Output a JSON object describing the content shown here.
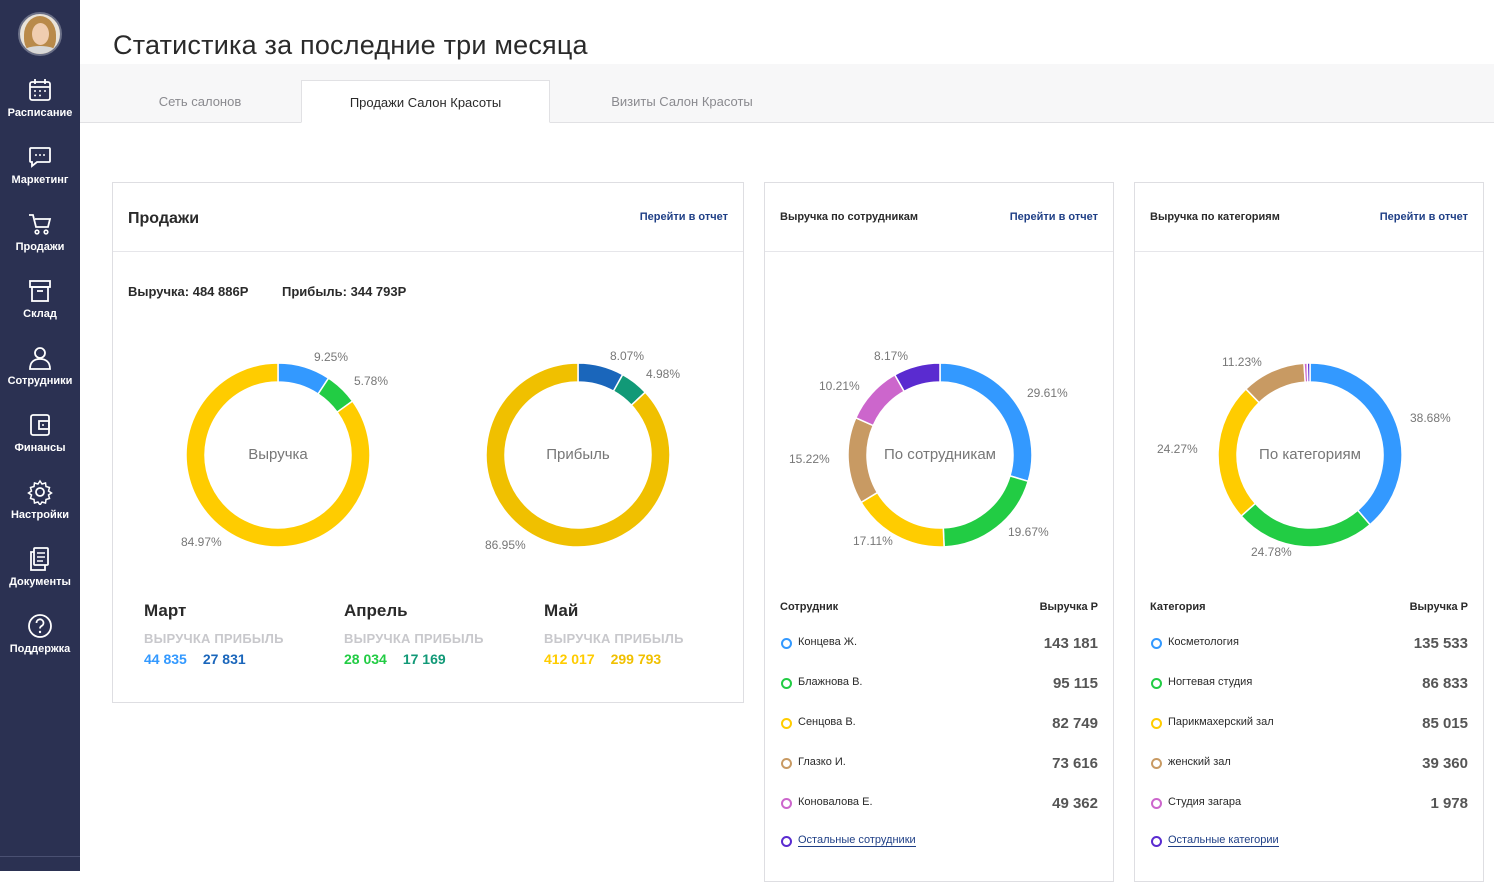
{
  "page": {
    "title": "Статистика за последние три месяца"
  },
  "sidebar": {
    "items": [
      {
        "label": "Расписание",
        "icon": "calendar-icon"
      },
      {
        "label": "Маркетинг",
        "icon": "chat-icon"
      },
      {
        "label": "Продажи",
        "icon": "cart-icon"
      },
      {
        "label": "Склад",
        "icon": "box-icon"
      },
      {
        "label": "Сотрудники",
        "icon": "user-icon"
      },
      {
        "label": "Финансы",
        "icon": "wallet-icon"
      },
      {
        "label": "Настройки",
        "icon": "gear-icon"
      },
      {
        "label": "Документы",
        "icon": "documents-icon"
      },
      {
        "label": "Поддержка",
        "icon": "help-icon"
      }
    ]
  },
  "tabs": [
    {
      "label": "Сеть салонов",
      "active": false
    },
    {
      "label": "Продажи Салон Красоты",
      "active": true
    },
    {
      "label": "Визиты Салон Красоты",
      "active": false
    }
  ],
  "sales": {
    "title": "Продажи",
    "link": "Перейти в отчет",
    "revenue_total": "Выручка: 484 886Р",
    "profit_total": "Прибыль: 344 793Р",
    "donut_revenue": {
      "center": "Выручка",
      "labels": [
        "9.25%",
        "5.78%",
        "84.97%"
      ]
    },
    "donut_profit": {
      "center": "Прибыль",
      "labels": [
        "8.07%",
        "4.98%",
        "86.95%"
      ]
    },
    "header_revenue": "ВЫРУЧКА",
    "header_profit": "ПРИБЫЛЬ",
    "months": [
      {
        "name": "Март",
        "revenue": "44 835",
        "profit": "27 831"
      },
      {
        "name": "Апрель",
        "revenue": "28 034",
        "profit": "17 169"
      },
      {
        "name": "Май",
        "revenue": "412 017",
        "profit": "299 793"
      }
    ]
  },
  "employees": {
    "title": "Выручка по сотрудникам",
    "link": "Перейти в отчет",
    "center": "По сотрудникам",
    "col_name": "Сотрудник",
    "col_value": "Выручка Р",
    "rows": [
      {
        "name": "Концева Ж.",
        "value": "143 181",
        "color": "#3399ff"
      },
      {
        "name": "Блажнова В.",
        "value": "95 115",
        "color": "#22cc44"
      },
      {
        "name": "Сенцова В.",
        "value": "82 749",
        "color": "#ffcc00"
      },
      {
        "name": "Глазко И.",
        "value": "73 616",
        "color": "#c89a63"
      },
      {
        "name": "Коновалова Е.",
        "value": "49 362",
        "color": "#cc66cc"
      }
    ],
    "others": "Остальные сотрудники",
    "others_color": "#5a2bd0"
  },
  "categories": {
    "title": "Выручка по категориям",
    "link": "Перейти в отчет",
    "center": "По категориям",
    "col_name": "Категория",
    "col_value": "Выручка Р",
    "rows": [
      {
        "name": "Косметология",
        "value": "135 533",
        "color": "#3399ff"
      },
      {
        "name": "Ногтевая студия",
        "value": "86 833",
        "color": "#22cc44"
      },
      {
        "name": "Парикмахерский зал",
        "value": "85 015",
        "color": "#ffcc00"
      },
      {
        "name": "женский зал",
        "value": "39 360",
        "color": "#c89a63"
      },
      {
        "name": "Студия загара",
        "value": "1 978",
        "color": "#cc66cc"
      }
    ],
    "others": "Остальные категории",
    "others_color": "#5a2bd0"
  },
  "chart_data": [
    {
      "type": "pie",
      "title": "Выручка",
      "categories": [
        "Март",
        "Апрель",
        "Май"
      ],
      "values": [
        9.25,
        5.78,
        84.97
      ],
      "colors": [
        "#3399ff",
        "#22cc44",
        "#ffcc00"
      ]
    },
    {
      "type": "pie",
      "title": "Прибыль",
      "categories": [
        "Март",
        "Апрель",
        "Май"
      ],
      "values": [
        8.07,
        4.98,
        86.95
      ],
      "colors": [
        "#1a66bb",
        "#119977",
        "#f0c000"
      ]
    },
    {
      "type": "pie",
      "title": "По сотрудникам",
      "categories": [
        "Концева Ж.",
        "Блажнова В.",
        "Сенцова В.",
        "Глазко И.",
        "Коновалова Е.",
        "Остальные сотрудники"
      ],
      "values": [
        29.61,
        19.67,
        17.11,
        15.22,
        10.21,
        8.17
      ],
      "colors": [
        "#3399ff",
        "#22cc44",
        "#ffcc00",
        "#c89a63",
        "#cc66cc",
        "#5a2bd0"
      ]
    },
    {
      "type": "pie",
      "title": "По категориям",
      "categories": [
        "Косметология",
        "Ногтевая студия",
        "Парикмахерский зал",
        "женский зал",
        "Студия загара",
        "Остальные категории"
      ],
      "values": [
        38.68,
        24.78,
        24.27,
        11.23,
        0.56,
        0.48
      ],
      "colors": [
        "#3399ff",
        "#22cc44",
        "#ffcc00",
        "#c89a63",
        "#cc66cc",
        "#5a2bd0"
      ]
    }
  ],
  "colors": {
    "sidebar": "#2b3152",
    "link": "#1f3f86",
    "march_revenue": "#3399ff",
    "march_profit": "#1a66bb",
    "april_revenue": "#22cc44",
    "april_profit": "#119977",
    "may_revenue": "#ffcc00",
    "may_profit": "#f0c000"
  }
}
